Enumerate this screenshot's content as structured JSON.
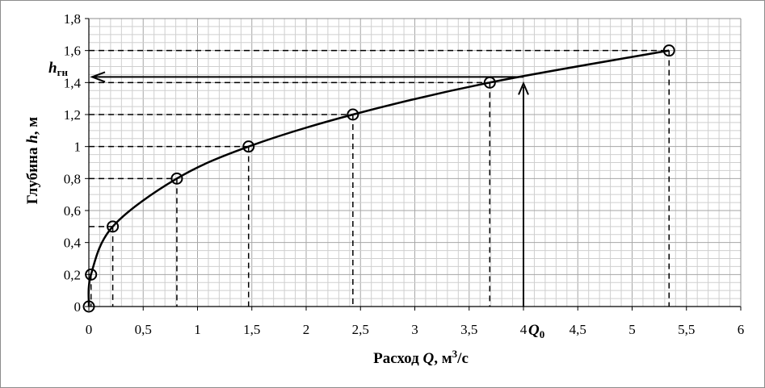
{
  "chart_data": {
    "type": "line",
    "title": "",
    "xlabel": {
      "prefix": "Расход ",
      "var": "Q",
      "suffix": ", м",
      "sup": "3",
      "tail": "/с"
    },
    "ylabel": {
      "prefix": "Глубина ",
      "var": "h",
      "suffix": ", м"
    },
    "xlim": [
      0,
      6
    ],
    "ylim": [
      0,
      1.8
    ],
    "x_ticks": [
      "0",
      "0,5",
      "1",
      "1,5",
      "2",
      "2,5",
      "3",
      "3,5",
      "4",
      "4,5",
      "5",
      "5,5",
      "6"
    ],
    "y_ticks": [
      "0",
      "0,2",
      "0,4",
      "0,6",
      "0,8",
      "1",
      "1,2",
      "1,4",
      "1,6",
      "1,8"
    ],
    "minor_grid_step": {
      "x": 0.1,
      "y": 0.05
    },
    "grid": true,
    "series": [
      {
        "marker": "circle",
        "x": [
          0,
          0.02,
          0.22,
          0.81,
          1.47,
          2.43,
          3.69,
          5.34
        ],
        "y": [
          0,
          0.2,
          0.5,
          0.8,
          1.0,
          1.2,
          1.4,
          1.6
        ]
      }
    ],
    "annotations": {
      "h_label": {
        "main": "h",
        "sub": "гн"
      },
      "q_label": {
        "main": "Q",
        "sub": "0"
      },
      "q0": 4.0,
      "h_gn": 1.435
    }
  }
}
